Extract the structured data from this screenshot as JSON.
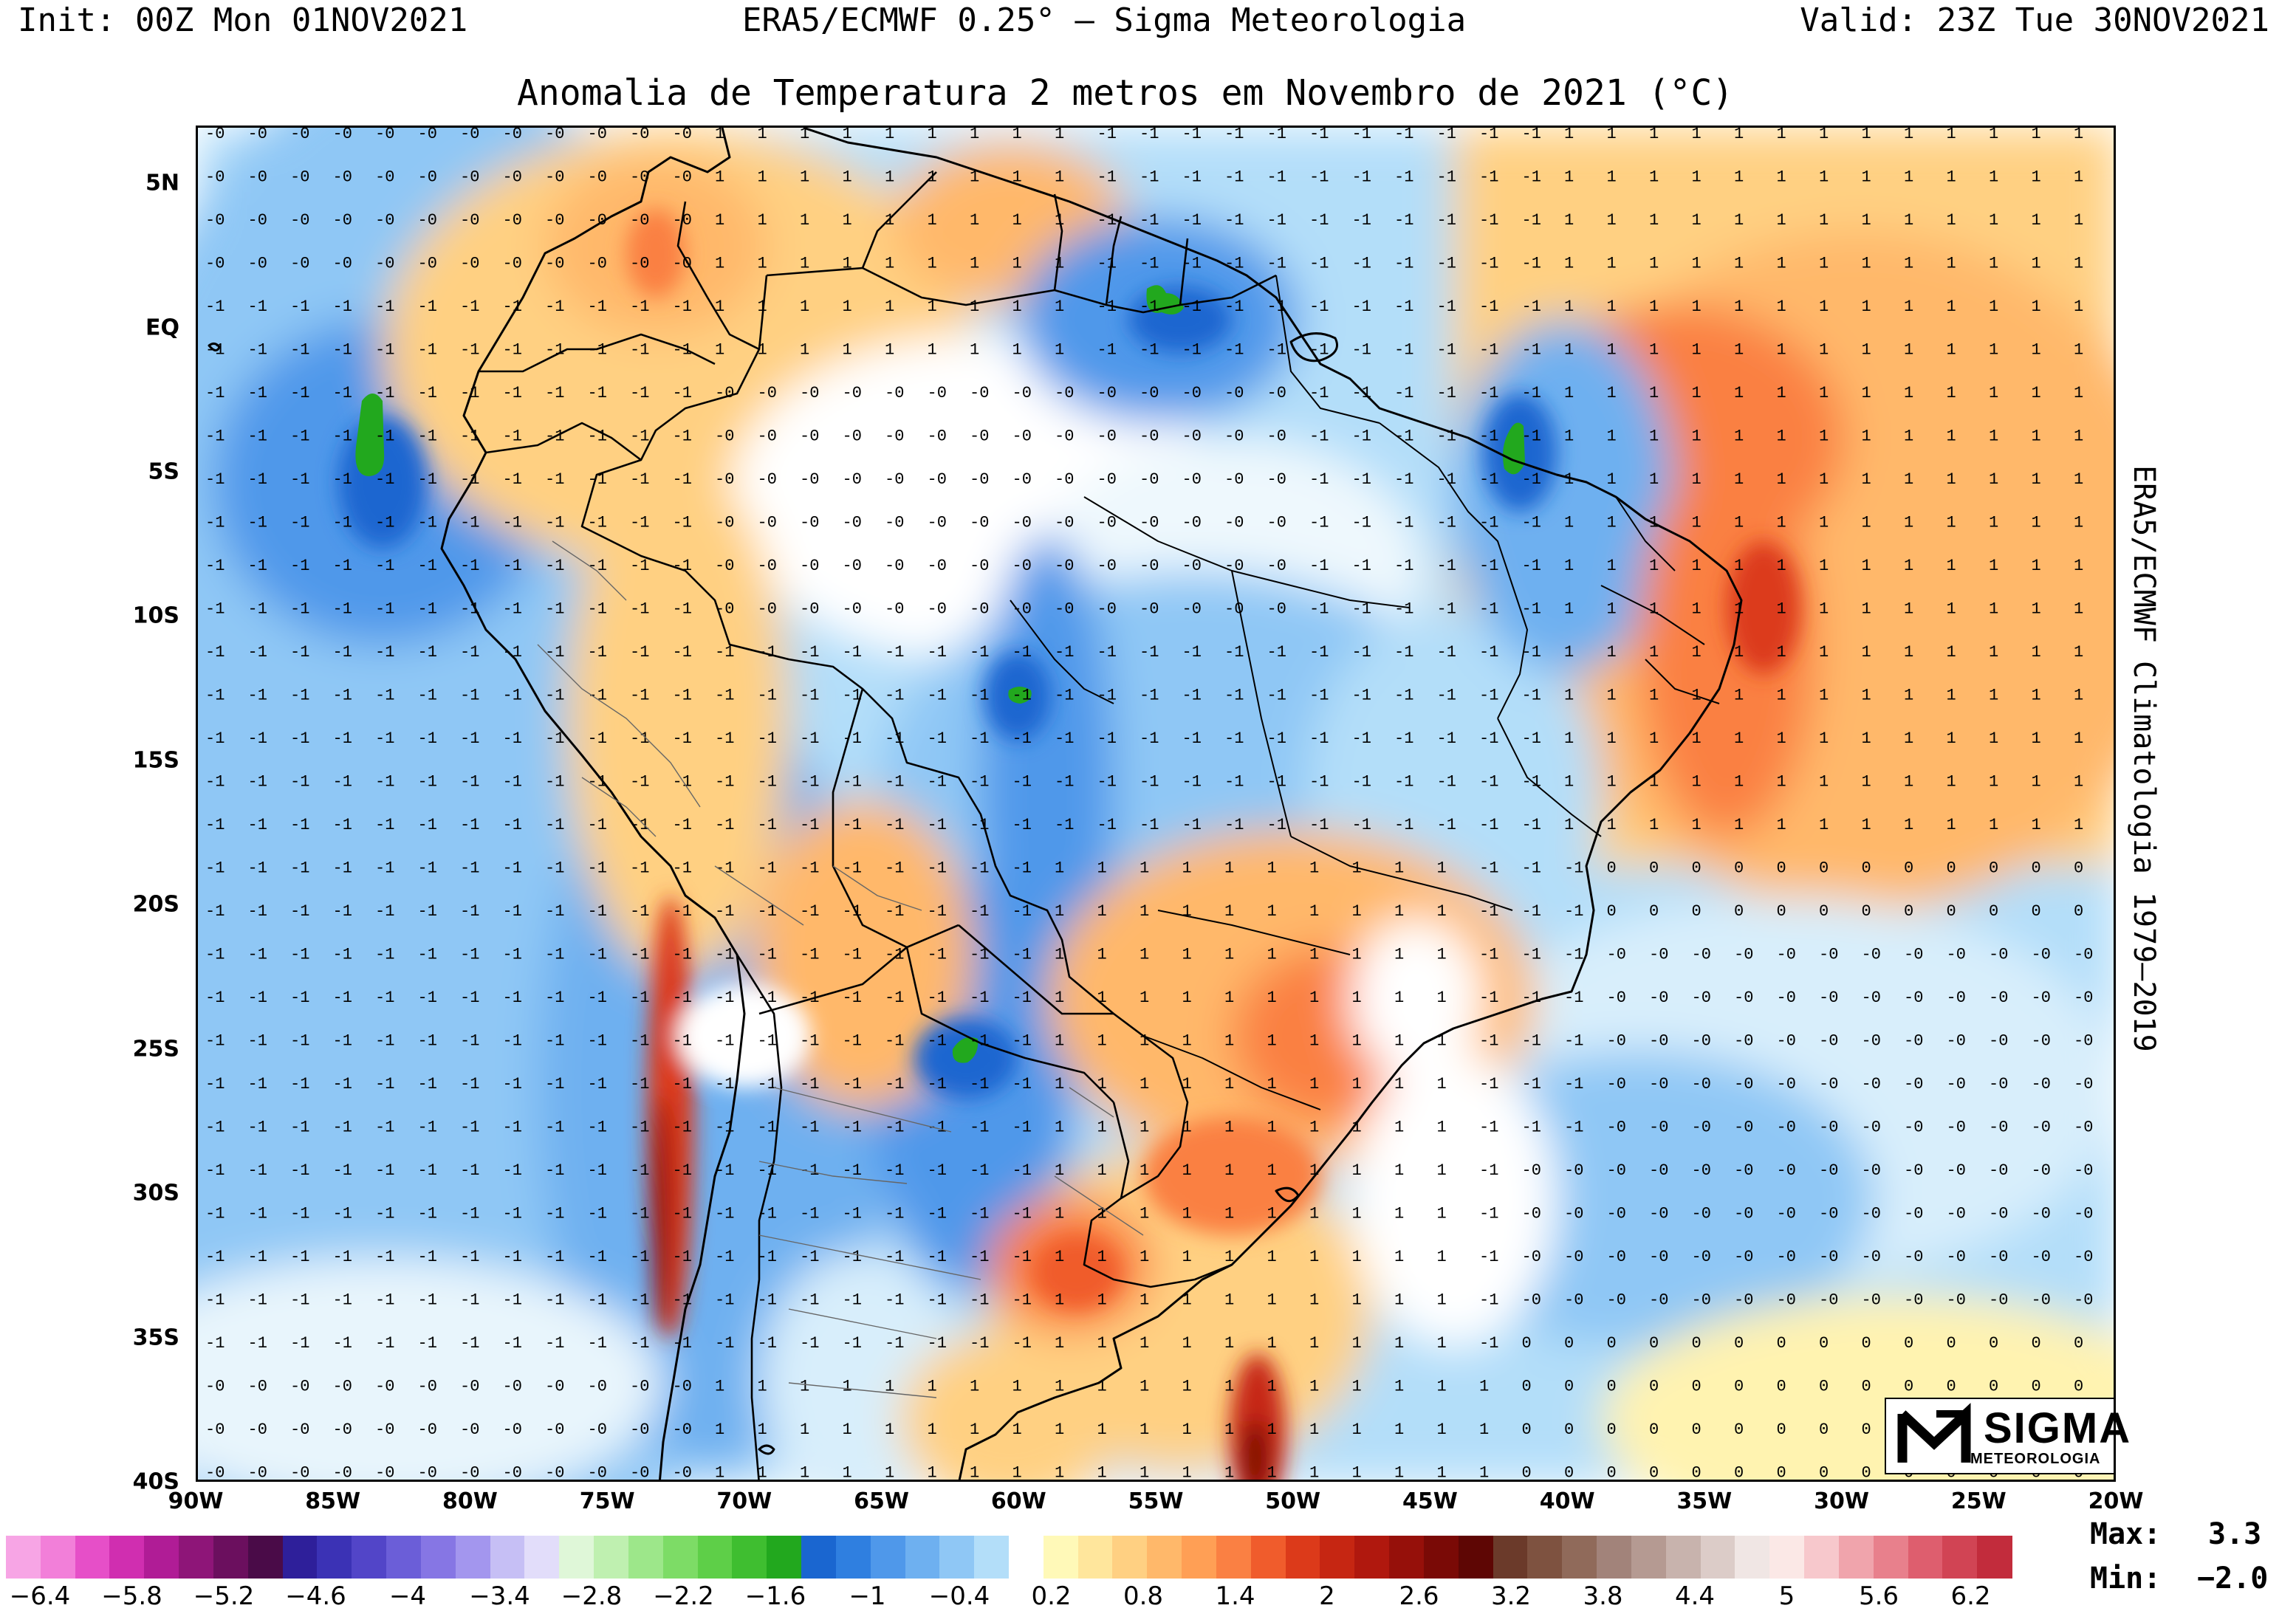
{
  "header": {
    "left": "Init: 00Z Mon 01NOV2021",
    "center": "ERA5/ECMWF 0.25° – Sigma Meteorologia",
    "right": "Valid: 23Z Tue 30NOV2021"
  },
  "map": {
    "title": "Anomalia de Temperatura 2 metros em Novembro de 2021 (°C)",
    "side_label": "ERA5/ECMWF Climatologia 1979–2019",
    "lat_labels": [
      "5N",
      "EQ",
      "5S",
      "10S",
      "15S",
      "20S",
      "25S",
      "30S",
      "35S",
      "40S"
    ],
    "lon_labels": [
      "90W",
      "85W",
      "80W",
      "75W",
      "70W",
      "65W",
      "60W",
      "55W",
      "50W",
      "45W",
      "40W",
      "35W",
      "30W",
      "25W",
      "20W"
    ],
    "extent": {
      "lon": [
        -90,
        -20
      ],
      "lat": [
        -40,
        7
      ]
    }
  },
  "logo": {
    "word": "SIGMA",
    "sub": "METEOROLOGIA"
  },
  "colorbar": {
    "ticks": [
      "-6.4",
      "-5.8",
      "-5.2",
      "-4.6",
      "-4",
      "-3.4",
      "-2.8",
      "-2.2",
      "-1.6",
      "-1",
      "-0.4",
      "0.2",
      "0.8",
      "1.4",
      "2",
      "2.6",
      "3.2",
      "3.8",
      "4.4",
      "5",
      "5.6",
      "6.2"
    ],
    "colors": [
      "#f7a5e5",
      "#f27fd9",
      "#e64fc8",
      "#d02eb0",
      "#b01c96",
      "#8e1578",
      "#6b0f5e",
      "#4a0b48",
      "#2e1f9a",
      "#3b32b5",
      "#5245c8",
      "#6b5ed8",
      "#8676e4",
      "#a396ee",
      "#c6bff5",
      "#e2ddfa",
      "#dff7d8",
      "#bff0b0",
      "#9de78a",
      "#7ddc66",
      "#5ecf48",
      "#3fbe30",
      "#22a81e",
      "#1a66d0",
      "#2f7fe0",
      "#4f98ea",
      "#6eb0f0",
      "#8fc7f5",
      "#b3def9",
      "#ffffff",
      "#fff9b8",
      "#ffe69c",
      "#ffd082",
      "#ffb86a",
      "#ff9f55",
      "#fa8043",
      "#f05c2c",
      "#dc3a1a",
      "#c62612",
      "#b0180e",
      "#96100a",
      "#7a0a06",
      "#5e0604",
      "#6b3a2a",
      "#7e5240",
      "#906a5a",
      "#a2837a",
      "#b59a92",
      "#c8b3ad",
      "#dcccc8",
      "#f0e6e4",
      "#fbe8e6",
      "#f7c8cc",
      "#f0a4ac",
      "#e8808c",
      "#de5e6e",
      "#d14454",
      "#c22c3c"
    ],
    "max_label": "Max:",
    "max_value": "3.3",
    "min_label": "Min:",
    "min_value": "−2.0"
  }
}
